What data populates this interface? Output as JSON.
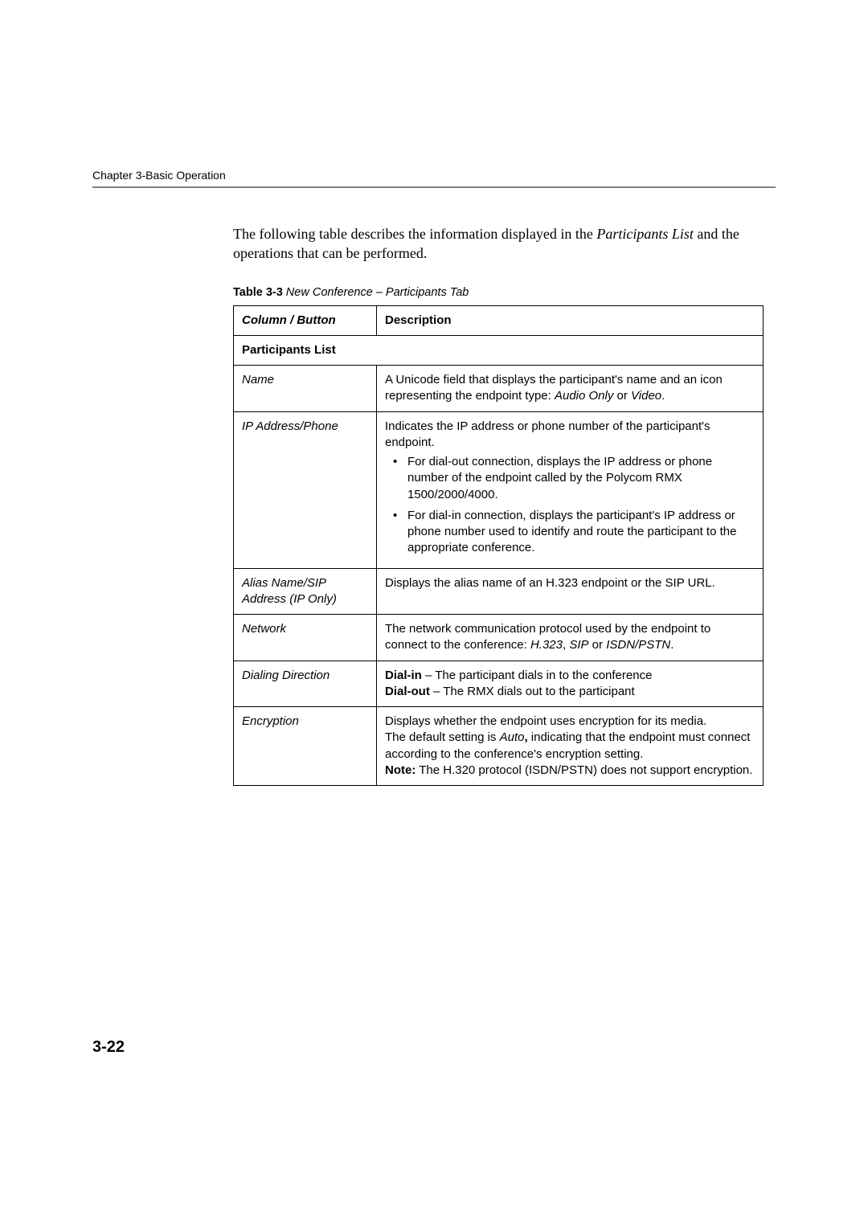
{
  "header": {
    "chapter_text": "Chapter 3-Basic Operation"
  },
  "intro": {
    "line1_pre": "The following table describes the information displayed in the ",
    "line2_italic": "Participants List",
    "line2_rest": " and the operations that can be performed."
  },
  "caption": {
    "bold": "Table 3-3",
    "rest": " New Conference – Participants Tab"
  },
  "table": {
    "headers": {
      "col1": "Column / Button",
      "col2": "Description"
    },
    "section": "Participants List",
    "rows": {
      "name": {
        "label": "Name",
        "desc_pre": "A Unicode field that displays the participant's name and an icon representing the endpoint type: ",
        "desc_i1": "Audio Only",
        "desc_mid": " or ",
        "desc_i2": "Video",
        "desc_post": "."
      },
      "ip": {
        "label": "IP Address/Phone",
        "desc_intro": "Indicates the IP address or phone number of the participant's endpoint.",
        "bullet1": "For dial-out connection, displays the IP address or phone number of the endpoint called by the Polycom RMX 1500/2000/4000.",
        "bullet2": "For dial-in connection, displays the participant's IP address or phone number used to identify and route the participant to the appropriate conference."
      },
      "alias": {
        "label": "Alias Name/SIP Address (IP Only)",
        "desc": "Displays the alias name of an H.323 endpoint or the SIP URL."
      },
      "network": {
        "label": "Network",
        "desc_pre": "The network communication protocol used by the endpoint to connect to the conference: ",
        "desc_i1": "H.323",
        "desc_mid1": ", ",
        "desc_i2": "SIP",
        "desc_mid2": " or ",
        "desc_i3": "ISDN/PSTN",
        "desc_post": "."
      },
      "dialing": {
        "label": "Dialing Direction",
        "b1": "Dial-in",
        "t1": " – The participant dials in to the conference",
        "b2": "Dial-out",
        "t2": " – The RMX dials out to the participant"
      },
      "encryption": {
        "label": "Encryption",
        "p1": "Displays whether the endpoint uses encryption for its media.",
        "p2_pre": "The default setting is ",
        "p2_i": "Auto",
        "p2_b_comma": ",",
        "p2_post": " indicating that the endpoint must connect according to the conference's encryption setting.",
        "p3_b": "Note:",
        "p3_rest": " The H.320 protocol (ISDN/PSTN) does not support encryption."
      }
    }
  },
  "page_number": "3-22"
}
